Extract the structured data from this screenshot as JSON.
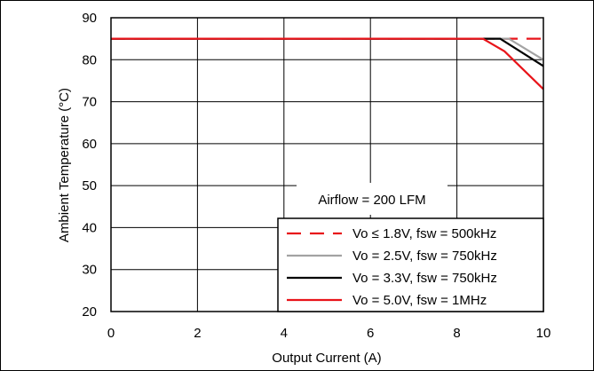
{
  "chart_data": {
    "type": "line",
    "title": "",
    "xlabel": "Output Current (A)",
    "ylabel": "Ambient Temperature (°C)",
    "xlim": [
      0,
      10
    ],
    "ylim": [
      20,
      90
    ],
    "xticks": [
      "0",
      "2",
      "4",
      "6",
      "8",
      "10"
    ],
    "yticks": [
      "20",
      "30",
      "40",
      "50",
      "60",
      "70",
      "80",
      "90"
    ],
    "grid": true,
    "annotation": "Airflow = 200 LFM",
    "legend_position": "bottom-right",
    "series": [
      {
        "name": "Vo ≤ 1.8V, fsw = 500kHz",
        "color": "#e8141a",
        "dash": "dashed",
        "points": [
          [
            0,
            85
          ],
          [
            10,
            85
          ]
        ]
      },
      {
        "name": "Vo = 2.5V, fsw = 750kHz",
        "color": "#a3a3a3",
        "dash": "solid",
        "points": [
          [
            0,
            85
          ],
          [
            9.2,
            85
          ],
          [
            10,
            80
          ]
        ]
      },
      {
        "name": "Vo = 3.3V, fsw = 750kHz",
        "color": "#000000",
        "dash": "solid",
        "points": [
          [
            0,
            85
          ],
          [
            9.0,
            85
          ],
          [
            10,
            78.5
          ]
        ]
      },
      {
        "name": "Vo = 5.0V, fsw = 1MHz",
        "color": "#e8141a",
        "dash": "solid",
        "points": [
          [
            0,
            85
          ],
          [
            8.6,
            85
          ],
          [
            9.1,
            82
          ],
          [
            10,
            73
          ]
        ]
      }
    ]
  }
}
